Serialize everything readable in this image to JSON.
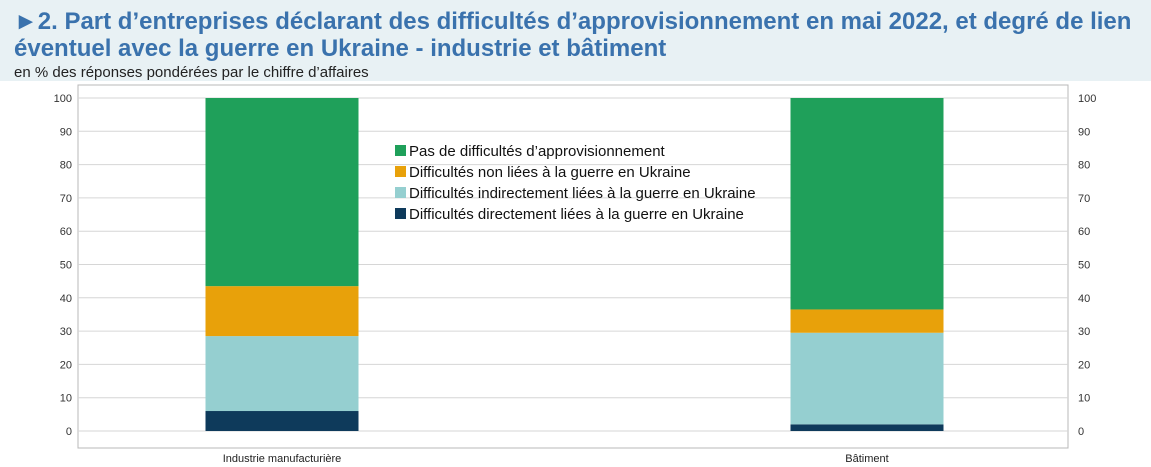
{
  "title": "►2. Part d’entreprises déclarant des difficultés d’approvisionnement en mai 2022, et degré de lien éventuel avec la guerre en Ukraine - industrie et bâtiment",
  "subtitle": "en % des réponses pondérées par le chiffre d’affaires",
  "chart_data": {
    "type": "bar",
    "stacked": true,
    "categories": [
      "Industrie manufacturière",
      "Bâtiment"
    ],
    "series": [
      {
        "name": "Difficultés directement liées à la guerre en Ukraine",
        "values": [
          6,
          2
        ],
        "color": "#0e3a5b"
      },
      {
        "name": "Difficultés indirectement liées à la guerre en Ukraine",
        "values": [
          22.5,
          27.5
        ],
        "color": "#95cfd0"
      },
      {
        "name": "Difficultés non liées à la guerre en Ukraine",
        "values": [
          15,
          7
        ],
        "color": "#e8a10a"
      },
      {
        "name": "Pas de difficultés d’approvisionnement",
        "values": [
          56.5,
          63.5
        ],
        "color": "#1fa05a"
      }
    ],
    "legend_order": [
      3,
      2,
      1,
      0
    ],
    "ylim": [
      0,
      100
    ],
    "yticks": [
      0,
      10,
      20,
      30,
      40,
      50,
      60,
      70,
      80,
      90,
      100
    ],
    "y_axis_both_sides": true,
    "grid": true,
    "legend_placement": "top-center",
    "xlabel": "",
    "ylabel": ""
  }
}
